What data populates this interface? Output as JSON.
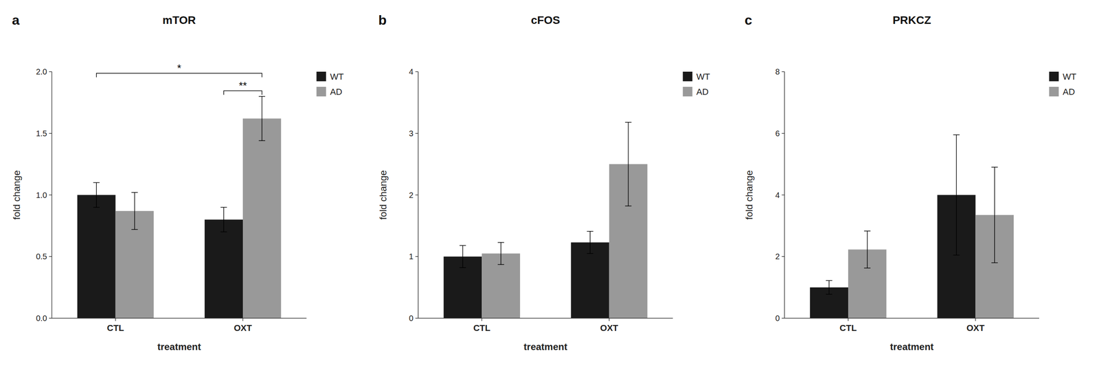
{
  "chart_data": [
    {
      "type": "bar",
      "panel_label": "a",
      "title": "mTOR",
      "xlabel": "treatment",
      "ylabel": "fold change",
      "categories": [
        "CTL",
        "OXT"
      ],
      "series": [
        {
          "name": "WT",
          "color": "#1a1a1a",
          "values": [
            1.0,
            0.8
          ],
          "errors": [
            0.1,
            0.1
          ]
        },
        {
          "name": "AD",
          "color": "#999999",
          "values": [
            0.87,
            1.62
          ],
          "errors": [
            0.15,
            0.18
          ]
        }
      ],
      "ylim": [
        0,
        2.0
      ],
      "yticks": [
        {
          "value": 0.0,
          "label": "0.0"
        },
        0.5,
        {
          "value": 1.0,
          "label": "1.0"
        },
        1.5,
        {
          "value": 2.0,
          "label": "2.0"
        }
      ],
      "grid": false,
      "legend": "right",
      "annotations": [
        {
          "text": "**",
          "from": {
            "series": 0,
            "category": 1
          },
          "to": {
            "series": 1,
            "category": 1
          }
        },
        {
          "text": "*",
          "from": {
            "series": 0,
            "category": 0
          },
          "to": {
            "series": 1,
            "category": 1
          }
        }
      ]
    },
    {
      "type": "bar",
      "panel_label": "b",
      "title": "cFOS",
      "xlabel": "treatment",
      "ylabel": "fold change",
      "categories": [
        "CTL",
        "OXT"
      ],
      "series": [
        {
          "name": "WT",
          "color": "#1a1a1a",
          "values": [
            1.0,
            1.23
          ],
          "errors": [
            0.18,
            0.18
          ]
        },
        {
          "name": "AD",
          "color": "#999999",
          "values": [
            1.05,
            2.5
          ],
          "errors": [
            0.18,
            0.68
          ]
        }
      ],
      "ylim": [
        0,
        4.0
      ],
      "yticks": [
        0,
        1,
        2,
        3,
        4
      ],
      "grid": false,
      "legend": "right"
    },
    {
      "type": "bar",
      "panel_label": "c",
      "title": "PRKCZ",
      "xlabel": "treatment",
      "ylabel": "fold change",
      "categories": [
        "CTL",
        "OXT"
      ],
      "series": [
        {
          "name": "WT",
          "color": "#1a1a1a",
          "values": [
            1.0,
            4.0
          ],
          "errors": [
            0.22,
            1.95
          ]
        },
        {
          "name": "AD",
          "color": "#999999",
          "values": [
            2.23,
            3.35
          ],
          "errors": [
            0.6,
            1.55
          ]
        }
      ],
      "ylim": [
        0,
        8.0
      ],
      "yticks": [
        0,
        2,
        4,
        6,
        8
      ],
      "grid": false,
      "legend": "right"
    }
  ]
}
